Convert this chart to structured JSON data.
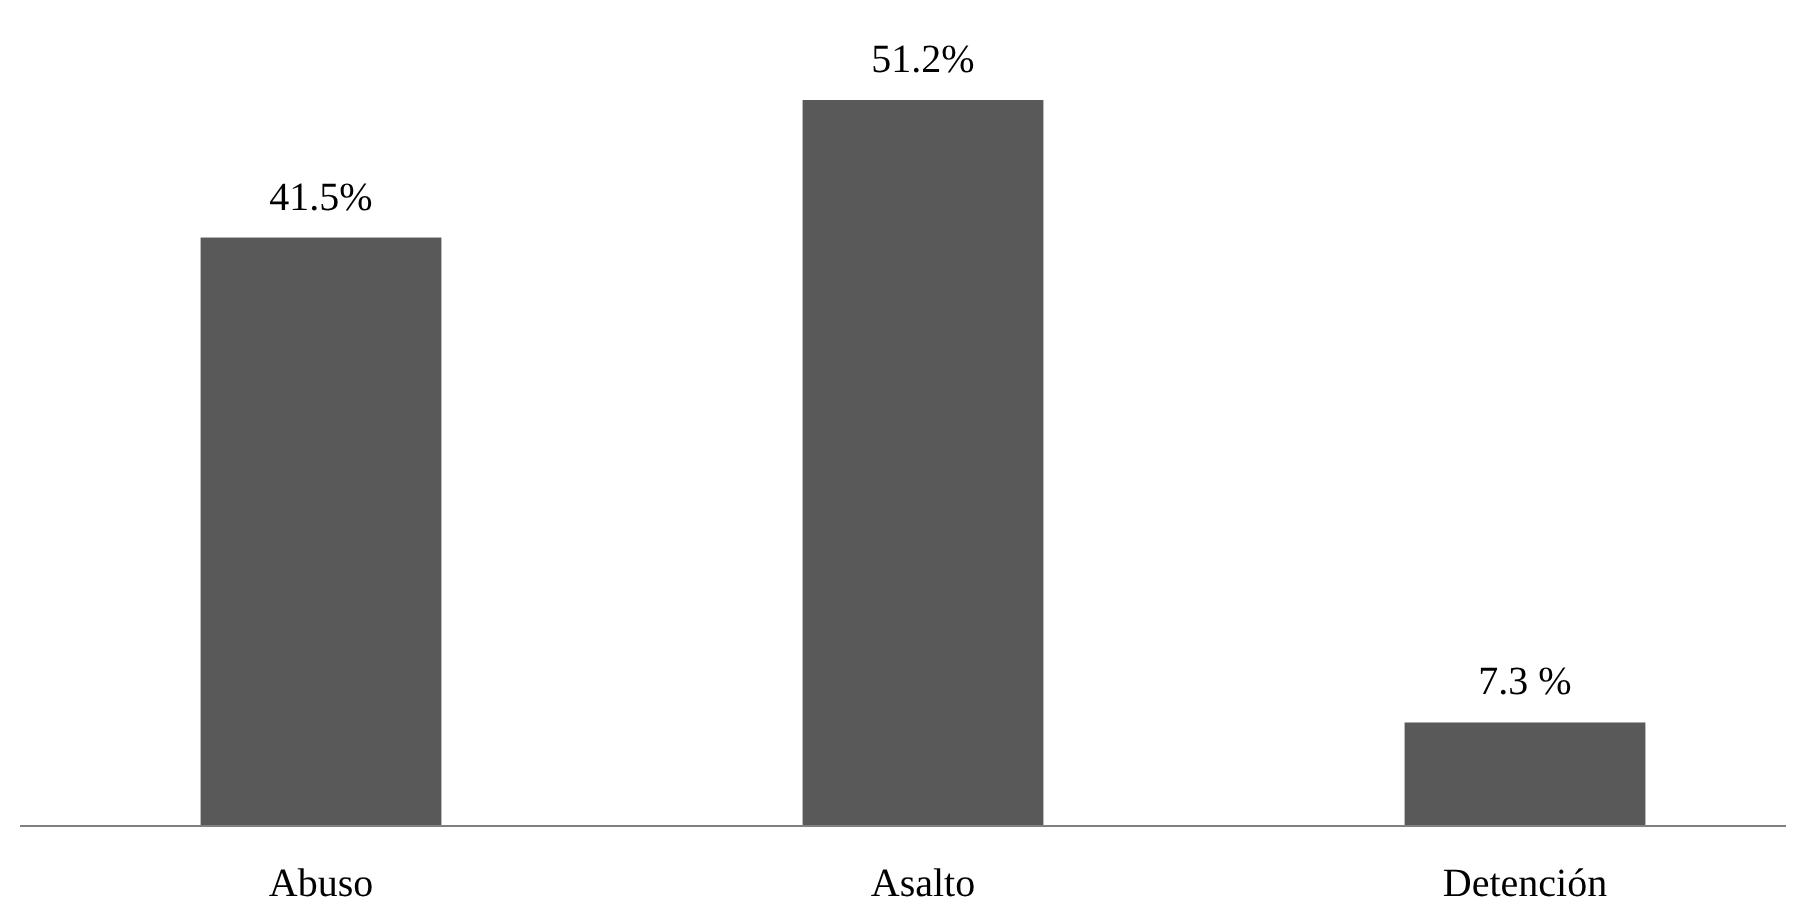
{
  "chart_data": {
    "type": "bar",
    "categories": [
      "Abuso",
      "Asalto",
      "Detención"
    ],
    "values": [
      41.5,
      51.2,
      7.3
    ],
    "value_labels": [
      "41.5%",
      "51.2%",
      "7.3 %"
    ],
    "color": "#595959"
  }
}
